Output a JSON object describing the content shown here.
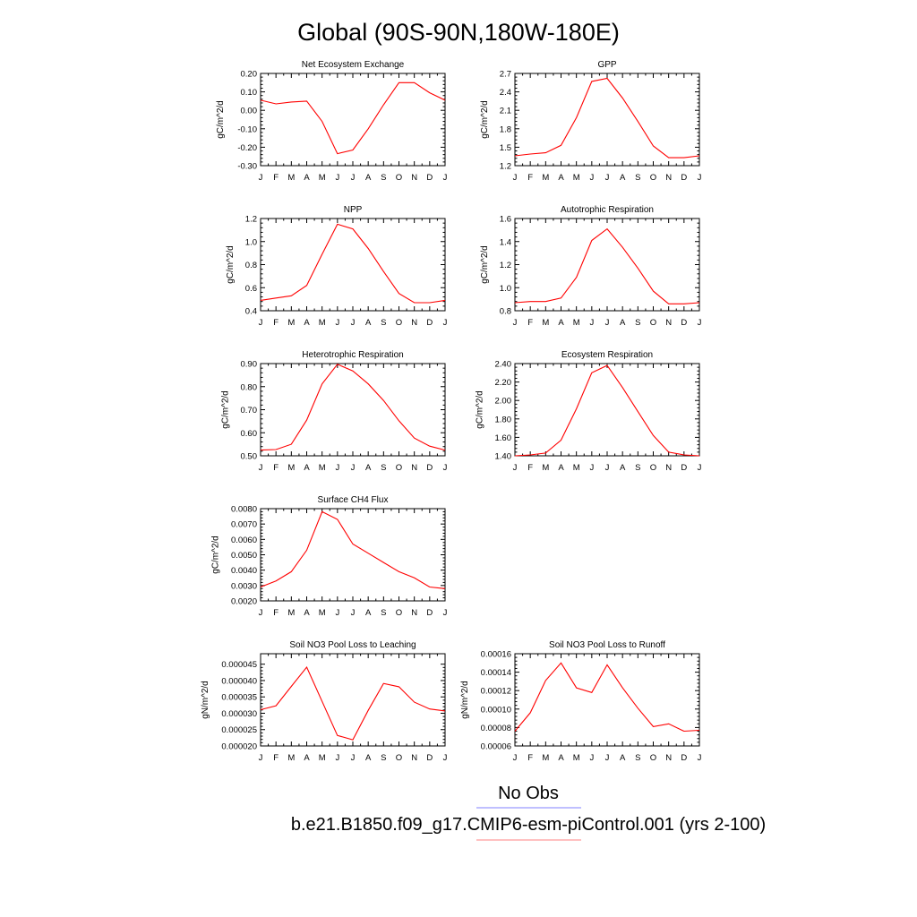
{
  "figure_title": "Global (90S-90N,180W-180E)",
  "legend": [
    {
      "label": "No Obs",
      "color": "#8080ff"
    },
    {
      "label": "b.e21.B1850.f09_g17.CMIP6-esm-piControl.001 (yrs 2-100)",
      "color": "#ff8080"
    }
  ],
  "series_color": "#ff0000",
  "chart_data": [
    {
      "type": "line",
      "title": "Net Ecosystem Exchange",
      "ylabel": "gC/m^2/d",
      "categories": [
        "J",
        "F",
        "M",
        "A",
        "M",
        "J",
        "J",
        "A",
        "S",
        "O",
        "N",
        "D",
        "J"
      ],
      "values": [
        0.055,
        0.035,
        0.045,
        0.05,
        -0.06,
        -0.235,
        -0.215,
        -0.1,
        0.03,
        0.15,
        0.15,
        0.095,
        0.055
      ],
      "ylim": [
        -0.3,
        0.2
      ],
      "yticks": [
        "-0.30",
        "-0.20",
        "-0.10",
        "0.00",
        "0.10",
        "0.20"
      ],
      "yticks_all": [
        "-0.30",
        "-0.20",
        "-0.10",
        "0.00",
        "0.10",
        "0.20"
      ]
    },
    {
      "type": "line",
      "title": "GPP",
      "ylabel": "gC/m^2/d",
      "categories": [
        "J",
        "F",
        "M",
        "A",
        "M",
        "J",
        "J",
        "A",
        "S",
        "O",
        "N",
        "D",
        "J"
      ],
      "values": [
        1.36,
        1.39,
        1.41,
        1.53,
        1.98,
        2.57,
        2.62,
        2.3,
        1.92,
        1.52,
        1.33,
        1.33,
        1.36
      ],
      "ylim": [
        1.2,
        2.7
      ],
      "yticks": [
        "1.2",
        "1.5",
        "1.8",
        "2.1",
        "2.4",
        "2.7"
      ]
    },
    {
      "type": "line",
      "title": "NPP",
      "ylabel": "gC/m^2/d",
      "categories": [
        "J",
        "F",
        "M",
        "A",
        "M",
        "J",
        "J",
        "A",
        "S",
        "O",
        "N",
        "D",
        "J"
      ],
      "values": [
        0.49,
        0.51,
        0.53,
        0.62,
        0.89,
        1.15,
        1.11,
        0.94,
        0.74,
        0.55,
        0.47,
        0.47,
        0.49
      ],
      "ylim": [
        0.4,
        1.2
      ],
      "yticks": [
        "0.4",
        "0.6",
        "0.8",
        "1.0",
        "1.2"
      ]
    },
    {
      "type": "line",
      "title": "Autotrophic Respiration",
      "ylabel": "gC/m^2/d",
      "categories": [
        "J",
        "F",
        "M",
        "A",
        "M",
        "J",
        "J",
        "A",
        "S",
        "O",
        "N",
        "D",
        "J"
      ],
      "values": [
        0.87,
        0.88,
        0.88,
        0.91,
        1.09,
        1.41,
        1.51,
        1.35,
        1.17,
        0.97,
        0.86,
        0.86,
        0.87
      ],
      "ylim": [
        0.8,
        1.6
      ],
      "yticks": [
        "0.8",
        "1.0",
        "1.2",
        "1.4",
        "1.6"
      ]
    },
    {
      "type": "line",
      "title": "Heterotrophic Respiration",
      "ylabel": "gC/m^2/d",
      "categories": [
        "J",
        "F",
        "M",
        "A",
        "M",
        "J",
        "J",
        "A",
        "S",
        "O",
        "N",
        "D",
        "J"
      ],
      "values": [
        0.525,
        0.527,
        0.55,
        0.655,
        0.812,
        0.897,
        0.868,
        0.812,
        0.74,
        0.652,
        0.577,
        0.542,
        0.525
      ],
      "ylim": [
        0.5,
        0.9
      ],
      "yticks": [
        "0.50",
        "0.60",
        "0.70",
        "0.80",
        "0.90"
      ]
    },
    {
      "type": "line",
      "title": "Ecosystem Respiration",
      "ylabel": "gC/m^2/d",
      "categories": [
        "J",
        "F",
        "M",
        "A",
        "M",
        "J",
        "J",
        "A",
        "S",
        "O",
        "N",
        "D",
        "J"
      ],
      "values": [
        1.4,
        1.41,
        1.43,
        1.57,
        1.91,
        2.3,
        2.38,
        2.14,
        1.88,
        1.62,
        1.44,
        1.41,
        1.4
      ],
      "ylim": [
        1.4,
        2.4
      ],
      "yticks": [
        "1.40",
        "1.60",
        "1.80",
        "2.00",
        "2.20",
        "2.40"
      ]
    },
    {
      "type": "line",
      "title": "Surface CH4 Flux",
      "ylabel": "gC/m^2/d",
      "categories": [
        "J",
        "F",
        "M",
        "A",
        "M",
        "J",
        "J",
        "A",
        "S",
        "O",
        "N",
        "D",
        "J"
      ],
      "values": [
        0.0029,
        0.0033,
        0.0039,
        0.0053,
        0.0078,
        0.0073,
        0.0057,
        0.0051,
        0.0045,
        0.0039,
        0.0035,
        0.0029,
        0.0028
      ],
      "ylim": [
        0.002,
        0.008
      ],
      "yticks": [
        "0.0020",
        "0.0030",
        "0.0040",
        "0.0050",
        "0.0060",
        "0.0070",
        "0.0080"
      ]
    },
    {
      "type": "line",
      "title": "Soil NO3 Pool Loss to Leaching",
      "ylabel": "gN/m^2/d",
      "categories": [
        "J",
        "F",
        "M",
        "A",
        "M",
        "J",
        "J",
        "A",
        "S",
        "O",
        "N",
        "D",
        "J"
      ],
      "values": [
        3.11e-05,
        3.23e-05,
        3.82e-05,
        4.41e-05,
        3.36e-05,
        2.32e-05,
        2.19e-05,
        3.09e-05,
        3.91e-05,
        3.81e-05,
        3.34e-05,
        3.13e-05,
        3.07e-05
      ],
      "ylim": [
        2e-05,
        4.82e-05
      ],
      "yticks": [
        "0.000020",
        "0.000025",
        "0.000030",
        "0.000035",
        "0.000040",
        "0.000045"
      ]
    },
    {
      "type": "line",
      "title": "Soil NO3 Pool Loss to Runoff",
      "ylabel": "gN/m^2/d",
      "categories": [
        "J",
        "F",
        "M",
        "A",
        "M",
        "J",
        "J",
        "A",
        "S",
        "O",
        "N",
        "D",
        "J"
      ],
      "values": [
        7.6e-05,
        9.6e-05,
        0.000131,
        0.00015,
        0.000123,
        0.000118,
        0.000148,
        0.000123,
        0.000101,
        8.1e-05,
        8.4e-05,
        7.6e-05,
        7.7e-05
      ],
      "ylim": [
        6e-05,
        0.00016
      ],
      "yticks": [
        "0.00006",
        "0.00008",
        "0.00010",
        "0.00012",
        "0.00014",
        "0.00016"
      ]
    }
  ]
}
